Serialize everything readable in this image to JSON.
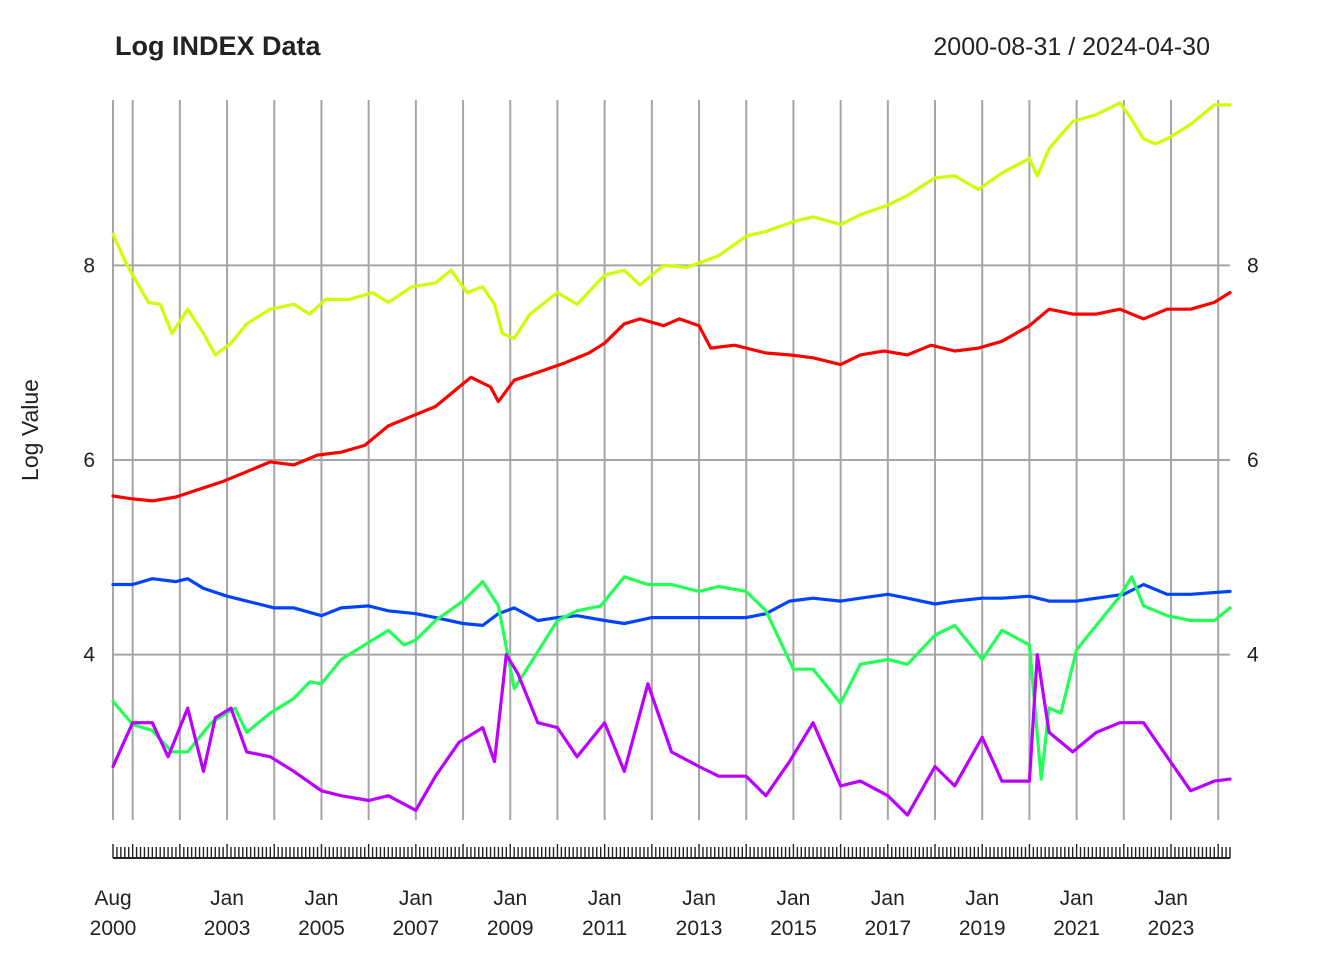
{
  "chart_data": {
    "type": "line",
    "title": "Log INDEX Data",
    "date_range": "2000-08-31 / 2024-04-30",
    "ylabel": "Log Value",
    "xlabel": "",
    "x_start": "2000-08",
    "x_end": "2024-04",
    "ylim": [
      2.3,
      9.7
    ],
    "yticks": [
      4,
      6,
      8
    ],
    "grid": true,
    "legend": "none",
    "x_tick_labels": [
      {
        "date": "2000-08",
        "line1": "Aug",
        "line2": "2000"
      },
      {
        "date": "2003-01",
        "line1": "Jan",
        "line2": "2003"
      },
      {
        "date": "2005-01",
        "line1": "Jan",
        "line2": "2005"
      },
      {
        "date": "2007-01",
        "line1": "Jan",
        "line2": "2007"
      },
      {
        "date": "2009-01",
        "line1": "Jan",
        "line2": "2009"
      },
      {
        "date": "2011-01",
        "line1": "Jan",
        "line2": "2011"
      },
      {
        "date": "2013-01",
        "line1": "Jan",
        "line2": "2013"
      },
      {
        "date": "2015-01",
        "line1": "Jan",
        "line2": "2015"
      },
      {
        "date": "2017-01",
        "line1": "Jan",
        "line2": "2017"
      },
      {
        "date": "2019-01",
        "line1": "Jan",
        "line2": "2019"
      },
      {
        "date": "2021-01",
        "line1": "Jan",
        "line2": "2021"
      },
      {
        "date": "2023-01",
        "line1": "Jan",
        "line2": "2023"
      }
    ],
    "vertical_gridlines": [
      "2000-08",
      "2001-01",
      "2002-01",
      "2003-01",
      "2004-01",
      "2005-01",
      "2006-01",
      "2007-01",
      "2008-01",
      "2009-01",
      "2010-01",
      "2011-01",
      "2012-01",
      "2013-01",
      "2014-01",
      "2015-01",
      "2016-01",
      "2017-01",
      "2018-01",
      "2019-01",
      "2020-01",
      "2021-01",
      "2022-01",
      "2023-01",
      "2024-01"
    ],
    "series": [
      {
        "color": "#ccff00",
        "points": [
          [
            "2000-08",
            8.32
          ],
          [
            "2000-11",
            8.05
          ],
          [
            "2001-01",
            7.9
          ],
          [
            "2001-05",
            7.62
          ],
          [
            "2001-08",
            7.6
          ],
          [
            "2001-11",
            7.3
          ],
          [
            "2002-03",
            7.55
          ],
          [
            "2002-07",
            7.3
          ],
          [
            "2002-10",
            7.08
          ],
          [
            "2003-02",
            7.2
          ],
          [
            "2003-06",
            7.4
          ],
          [
            "2003-12",
            7.55
          ],
          [
            "2004-06",
            7.6
          ],
          [
            "2004-10",
            7.5
          ],
          [
            "2005-02",
            7.65
          ],
          [
            "2005-08",
            7.65
          ],
          [
            "2006-02",
            7.72
          ],
          [
            "2006-06",
            7.62
          ],
          [
            "2006-12",
            7.78
          ],
          [
            "2007-06",
            7.82
          ],
          [
            "2007-10",
            7.95
          ],
          [
            "2008-02",
            7.72
          ],
          [
            "2008-06",
            7.78
          ],
          [
            "2008-09",
            7.6
          ],
          [
            "2008-11",
            7.3
          ],
          [
            "2009-02",
            7.25
          ],
          [
            "2009-06",
            7.5
          ],
          [
            "2010-01",
            7.72
          ],
          [
            "2010-06",
            7.6
          ],
          [
            "2011-01",
            7.9
          ],
          [
            "2011-06",
            7.95
          ],
          [
            "2011-10",
            7.8
          ],
          [
            "2012-04",
            8.0
          ],
          [
            "2012-10",
            7.98
          ],
          [
            "2013-06",
            8.1
          ],
          [
            "2014-01",
            8.3
          ],
          [
            "2014-06",
            8.35
          ],
          [
            "2015-01",
            8.45
          ],
          [
            "2015-06",
            8.5
          ],
          [
            "2016-01",
            8.42
          ],
          [
            "2016-06",
            8.52
          ],
          [
            "2017-01",
            8.62
          ],
          [
            "2017-06",
            8.72
          ],
          [
            "2018-01",
            8.9
          ],
          [
            "2018-06",
            8.92
          ],
          [
            "2018-12",
            8.78
          ],
          [
            "2019-06",
            8.95
          ],
          [
            "2020-01",
            9.1
          ],
          [
            "2020-03",
            8.92
          ],
          [
            "2020-06",
            9.2
          ],
          [
            "2020-12",
            9.48
          ],
          [
            "2021-06",
            9.55
          ],
          [
            "2021-12",
            9.67
          ],
          [
            "2022-03",
            9.5
          ],
          [
            "2022-06",
            9.3
          ],
          [
            "2022-09",
            9.25
          ],
          [
            "2022-12",
            9.3
          ],
          [
            "2023-06",
            9.45
          ],
          [
            "2023-12",
            9.65
          ],
          [
            "2024-04",
            9.65
          ]
        ]
      },
      {
        "color": "#ff0000",
        "points": [
          [
            "2000-08",
            5.63
          ],
          [
            "2001-01",
            5.6
          ],
          [
            "2001-06",
            5.58
          ],
          [
            "2001-12",
            5.62
          ],
          [
            "2002-06",
            5.7
          ],
          [
            "2002-12",
            5.78
          ],
          [
            "2003-06",
            5.88
          ],
          [
            "2003-12",
            5.98
          ],
          [
            "2004-06",
            5.95
          ],
          [
            "2004-12",
            6.05
          ],
          [
            "2005-06",
            6.08
          ],
          [
            "2005-12",
            6.15
          ],
          [
            "2006-06",
            6.35
          ],
          [
            "2006-12",
            6.45
          ],
          [
            "2007-06",
            6.55
          ],
          [
            "2007-12",
            6.75
          ],
          [
            "2008-03",
            6.85
          ],
          [
            "2008-08",
            6.75
          ],
          [
            "2008-10",
            6.6
          ],
          [
            "2009-02",
            6.82
          ],
          [
            "2009-08",
            6.9
          ],
          [
            "2010-03",
            7.0
          ],
          [
            "2010-09",
            7.1
          ],
          [
            "2011-01",
            7.2
          ],
          [
            "2011-06",
            7.4
          ],
          [
            "2011-10",
            7.45
          ],
          [
            "2012-04",
            7.38
          ],
          [
            "2012-08",
            7.45
          ],
          [
            "2013-01",
            7.38
          ],
          [
            "2013-04",
            7.15
          ],
          [
            "2013-10",
            7.18
          ],
          [
            "2014-06",
            7.1
          ],
          [
            "2014-12",
            7.08
          ],
          [
            "2015-06",
            7.05
          ],
          [
            "2016-01",
            6.98
          ],
          [
            "2016-06",
            7.08
          ],
          [
            "2016-12",
            7.12
          ],
          [
            "2017-06",
            7.08
          ],
          [
            "2017-12",
            7.18
          ],
          [
            "2018-06",
            7.12
          ],
          [
            "2018-12",
            7.15
          ],
          [
            "2019-06",
            7.22
          ],
          [
            "2020-01",
            7.38
          ],
          [
            "2020-06",
            7.55
          ],
          [
            "2020-12",
            7.5
          ],
          [
            "2021-06",
            7.5
          ],
          [
            "2021-12",
            7.55
          ],
          [
            "2022-06",
            7.45
          ],
          [
            "2022-12",
            7.55
          ],
          [
            "2023-06",
            7.55
          ],
          [
            "2023-12",
            7.62
          ],
          [
            "2024-04",
            7.72
          ]
        ]
      },
      {
        "color": "#0044ff",
        "points": [
          [
            "2000-08",
            4.72
          ],
          [
            "2001-01",
            4.72
          ],
          [
            "2001-06",
            4.78
          ],
          [
            "2001-12",
            4.75
          ],
          [
            "2002-03",
            4.78
          ],
          [
            "2002-07",
            4.68
          ],
          [
            "2003-01",
            4.6
          ],
          [
            "2003-06",
            4.55
          ],
          [
            "2004-01",
            4.48
          ],
          [
            "2004-06",
            4.48
          ],
          [
            "2005-01",
            4.4
          ],
          [
            "2005-06",
            4.48
          ],
          [
            "2006-01",
            4.5
          ],
          [
            "2006-06",
            4.45
          ],
          [
            "2007-01",
            4.42
          ],
          [
            "2007-06",
            4.38
          ],
          [
            "2008-01",
            4.32
          ],
          [
            "2008-06",
            4.3
          ],
          [
            "2008-10",
            4.42
          ],
          [
            "2009-02",
            4.48
          ],
          [
            "2009-08",
            4.35
          ],
          [
            "2010-01",
            4.38
          ],
          [
            "2010-06",
            4.4
          ],
          [
            "2011-01",
            4.35
          ],
          [
            "2011-06",
            4.32
          ],
          [
            "2012-01",
            4.38
          ],
          [
            "2012-06",
            4.38
          ],
          [
            "2013-01",
            4.38
          ],
          [
            "2013-06",
            4.38
          ],
          [
            "2014-01",
            4.38
          ],
          [
            "2014-06",
            4.42
          ],
          [
            "2014-12",
            4.55
          ],
          [
            "2015-06",
            4.58
          ],
          [
            "2016-01",
            4.55
          ],
          [
            "2016-06",
            4.58
          ],
          [
            "2017-01",
            4.62
          ],
          [
            "2017-06",
            4.58
          ],
          [
            "2018-01",
            4.52
          ],
          [
            "2018-06",
            4.55
          ],
          [
            "2019-01",
            4.58
          ],
          [
            "2019-06",
            4.58
          ],
          [
            "2020-01",
            4.6
          ],
          [
            "2020-06",
            4.55
          ],
          [
            "2021-01",
            4.55
          ],
          [
            "2021-06",
            4.58
          ],
          [
            "2022-01",
            4.62
          ],
          [
            "2022-06",
            4.72
          ],
          [
            "2022-12",
            4.62
          ],
          [
            "2023-06",
            4.62
          ],
          [
            "2024-04",
            4.65
          ]
        ]
      },
      {
        "color": "#22ff55",
        "points": [
          [
            "2000-08",
            3.52
          ],
          [
            "2001-01",
            3.28
          ],
          [
            "2001-06",
            3.22
          ],
          [
            "2001-11",
            3.0
          ],
          [
            "2002-03",
            3.0
          ],
          [
            "2002-09",
            3.3
          ],
          [
            "2003-03",
            3.45
          ],
          [
            "2003-06",
            3.2
          ],
          [
            "2003-12",
            3.4
          ],
          [
            "2004-06",
            3.55
          ],
          [
            "2004-10",
            3.72
          ],
          [
            "2005-01",
            3.7
          ],
          [
            "2005-06",
            3.95
          ],
          [
            "2005-12",
            4.1
          ],
          [
            "2006-06",
            4.25
          ],
          [
            "2006-10",
            4.1
          ],
          [
            "2007-01",
            4.15
          ],
          [
            "2007-06",
            4.35
          ],
          [
            "2008-01",
            4.55
          ],
          [
            "2008-06",
            4.75
          ],
          [
            "2008-10",
            4.5
          ],
          [
            "2009-02",
            3.65
          ],
          [
            "2009-06",
            3.9
          ],
          [
            "2010-01",
            4.35
          ],
          [
            "2010-06",
            4.45
          ],
          [
            "2010-12",
            4.5
          ],
          [
            "2011-06",
            4.8
          ],
          [
            "2011-12",
            4.72
          ],
          [
            "2012-06",
            4.72
          ],
          [
            "2013-01",
            4.65
          ],
          [
            "2013-06",
            4.7
          ],
          [
            "2014-01",
            4.65
          ],
          [
            "2014-06",
            4.45
          ],
          [
            "2015-01",
            3.85
          ],
          [
            "2015-06",
            3.85
          ],
          [
            "2016-01",
            3.5
          ],
          [
            "2016-06",
            3.9
          ],
          [
            "2017-01",
            3.95
          ],
          [
            "2017-06",
            3.9
          ],
          [
            "2018-01",
            4.2
          ],
          [
            "2018-06",
            4.3
          ],
          [
            "2019-01",
            3.95
          ],
          [
            "2019-06",
            4.25
          ],
          [
            "2020-01",
            4.1
          ],
          [
            "2020-04",
            2.72
          ],
          [
            "2020-06",
            3.45
          ],
          [
            "2020-09",
            3.4
          ],
          [
            "2021-01",
            4.05
          ],
          [
            "2021-06",
            4.3
          ],
          [
            "2021-12",
            4.6
          ],
          [
            "2022-03",
            4.8
          ],
          [
            "2022-06",
            4.5
          ],
          [
            "2022-12",
            4.4
          ],
          [
            "2023-06",
            4.35
          ],
          [
            "2023-12",
            4.35
          ],
          [
            "2024-04",
            4.48
          ]
        ]
      },
      {
        "color": "#bb00ff",
        "points": [
          [
            "2000-08",
            2.85
          ],
          [
            "2001-01",
            3.3
          ],
          [
            "2001-06",
            3.3
          ],
          [
            "2001-10",
            2.95
          ],
          [
            "2002-03",
            3.45
          ],
          [
            "2002-07",
            2.8
          ],
          [
            "2002-10",
            3.35
          ],
          [
            "2003-02",
            3.45
          ],
          [
            "2003-06",
            3.0
          ],
          [
            "2003-12",
            2.95
          ],
          [
            "2004-06",
            2.8
          ],
          [
            "2005-01",
            2.6
          ],
          [
            "2005-06",
            2.55
          ],
          [
            "2006-01",
            2.5
          ],
          [
            "2006-06",
            2.55
          ],
          [
            "2007-01",
            2.4
          ],
          [
            "2007-06",
            2.75
          ],
          [
            "2007-12",
            3.1
          ],
          [
            "2008-06",
            3.25
          ],
          [
            "2008-09",
            2.9
          ],
          [
            "2008-12",
            4.0
          ],
          [
            "2009-03",
            3.8
          ],
          [
            "2009-08",
            3.3
          ],
          [
            "2010-01",
            3.25
          ],
          [
            "2010-06",
            2.95
          ],
          [
            "2011-01",
            3.3
          ],
          [
            "2011-06",
            2.8
          ],
          [
            "2011-12",
            3.7
          ],
          [
            "2012-06",
            3.0
          ],
          [
            "2013-01",
            2.85
          ],
          [
            "2013-06",
            2.75
          ],
          [
            "2014-01",
            2.75
          ],
          [
            "2014-06",
            2.55
          ],
          [
            "2014-12",
            2.9
          ],
          [
            "2015-06",
            3.3
          ],
          [
            "2016-01",
            2.65
          ],
          [
            "2016-06",
            2.7
          ],
          [
            "2017-01",
            2.55
          ],
          [
            "2017-06",
            2.35
          ],
          [
            "2018-01",
            2.85
          ],
          [
            "2018-06",
            2.65
          ],
          [
            "2019-01",
            3.15
          ],
          [
            "2019-06",
            2.7
          ],
          [
            "2020-01",
            2.7
          ],
          [
            "2020-03",
            4.0
          ],
          [
            "2020-06",
            3.2
          ],
          [
            "2020-12",
            3.0
          ],
          [
            "2021-06",
            3.2
          ],
          [
            "2021-12",
            3.3
          ],
          [
            "2022-06",
            3.3
          ],
          [
            "2022-12",
            2.95
          ],
          [
            "2023-06",
            2.6
          ],
          [
            "2023-12",
            2.7
          ],
          [
            "2024-04",
            2.72
          ]
        ]
      }
    ]
  }
}
